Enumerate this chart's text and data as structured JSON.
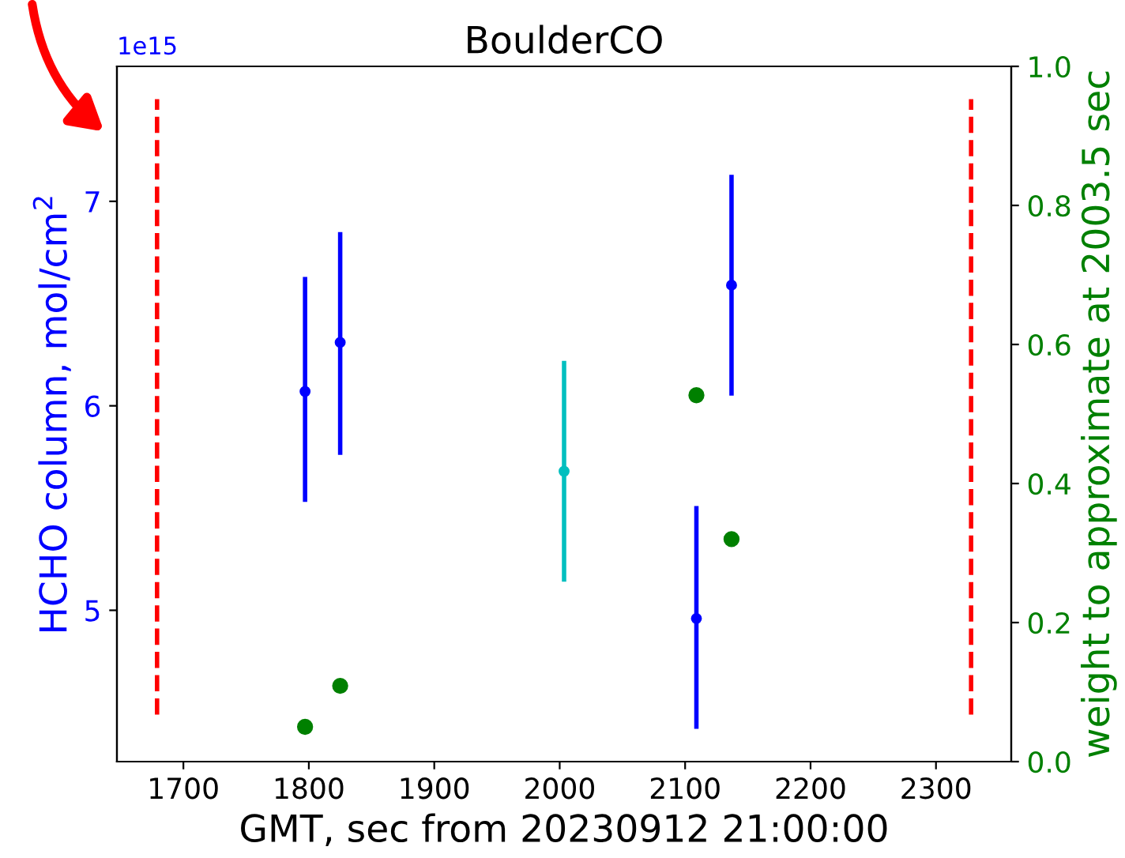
{
  "chart_data": {
    "type": "scatter",
    "title": "BoulderCO",
    "xlabel": "GMT, sec from 20230912 21:00:00",
    "ylabel": "HCHO column, mol/cm$^{2}$",
    "y2label": "weight to approximate at 2003.5 sec",
    "annotations": [
      "1e15"
    ],
    "xlim": [
      1647,
      2360
    ],
    "xticks": [
      1700,
      1800,
      1900,
      2000,
      2100,
      2200,
      2300
    ],
    "ylim": [
      4.26,
      7.66
    ],
    "yticks": [
      5,
      6,
      7
    ],
    "y2lim": [
      0.0,
      1.0
    ],
    "y2ticks": [
      {
        "value": 0.0,
        "label": "0.0"
      },
      {
        "value": 0.2,
        "label": "0.2"
      },
      {
        "value": 0.4,
        "label": "0.4"
      },
      {
        "value": 0.6,
        "label": "0.6"
      },
      {
        "value": 0.8,
        "label": "0.8"
      },
      {
        "value": 1.0,
        "label": "1.0"
      }
    ],
    "marker": "circle",
    "grid": false,
    "legend": false,
    "series": [
      {
        "color": "#0000ff",
        "x": [
          1797,
          1825,
          2109,
          2137
        ],
        "values": [
          6.07,
          6.31,
          4.96,
          6.59
        ],
        "errors": [
          [
            5.53,
            6.63
          ],
          [
            5.76,
            6.85
          ],
          [
            4.42,
            5.51
          ],
          [
            6.05,
            7.13
          ]
        ]
      },
      {
        "color": "#00bfbf",
        "x": [
          2003.5
        ],
        "values": [
          5.68
        ],
        "errors": [
          [
            5.14,
            6.22
          ]
        ]
      },
      {
        "color": "#008000",
        "axis": "y2",
        "x": [
          1797,
          1825,
          2109,
          2137
        ],
        "values": [
          0.05,
          0.109,
          0.527,
          0.32
        ]
      },
      {
        "type": "line",
        "color": "#ff0000",
        "line_style": "dashed",
        "marker": "none",
        "x": [
          1679,
          1679
        ],
        "values": [
          4.49,
          7.5
        ]
      },
      {
        "type": "line",
        "color": "#ff0000",
        "line_style": "dashed",
        "marker": "none",
        "x": [
          2328,
          2328
        ],
        "values": [
          4.49,
          7.5
        ]
      }
    ]
  }
}
